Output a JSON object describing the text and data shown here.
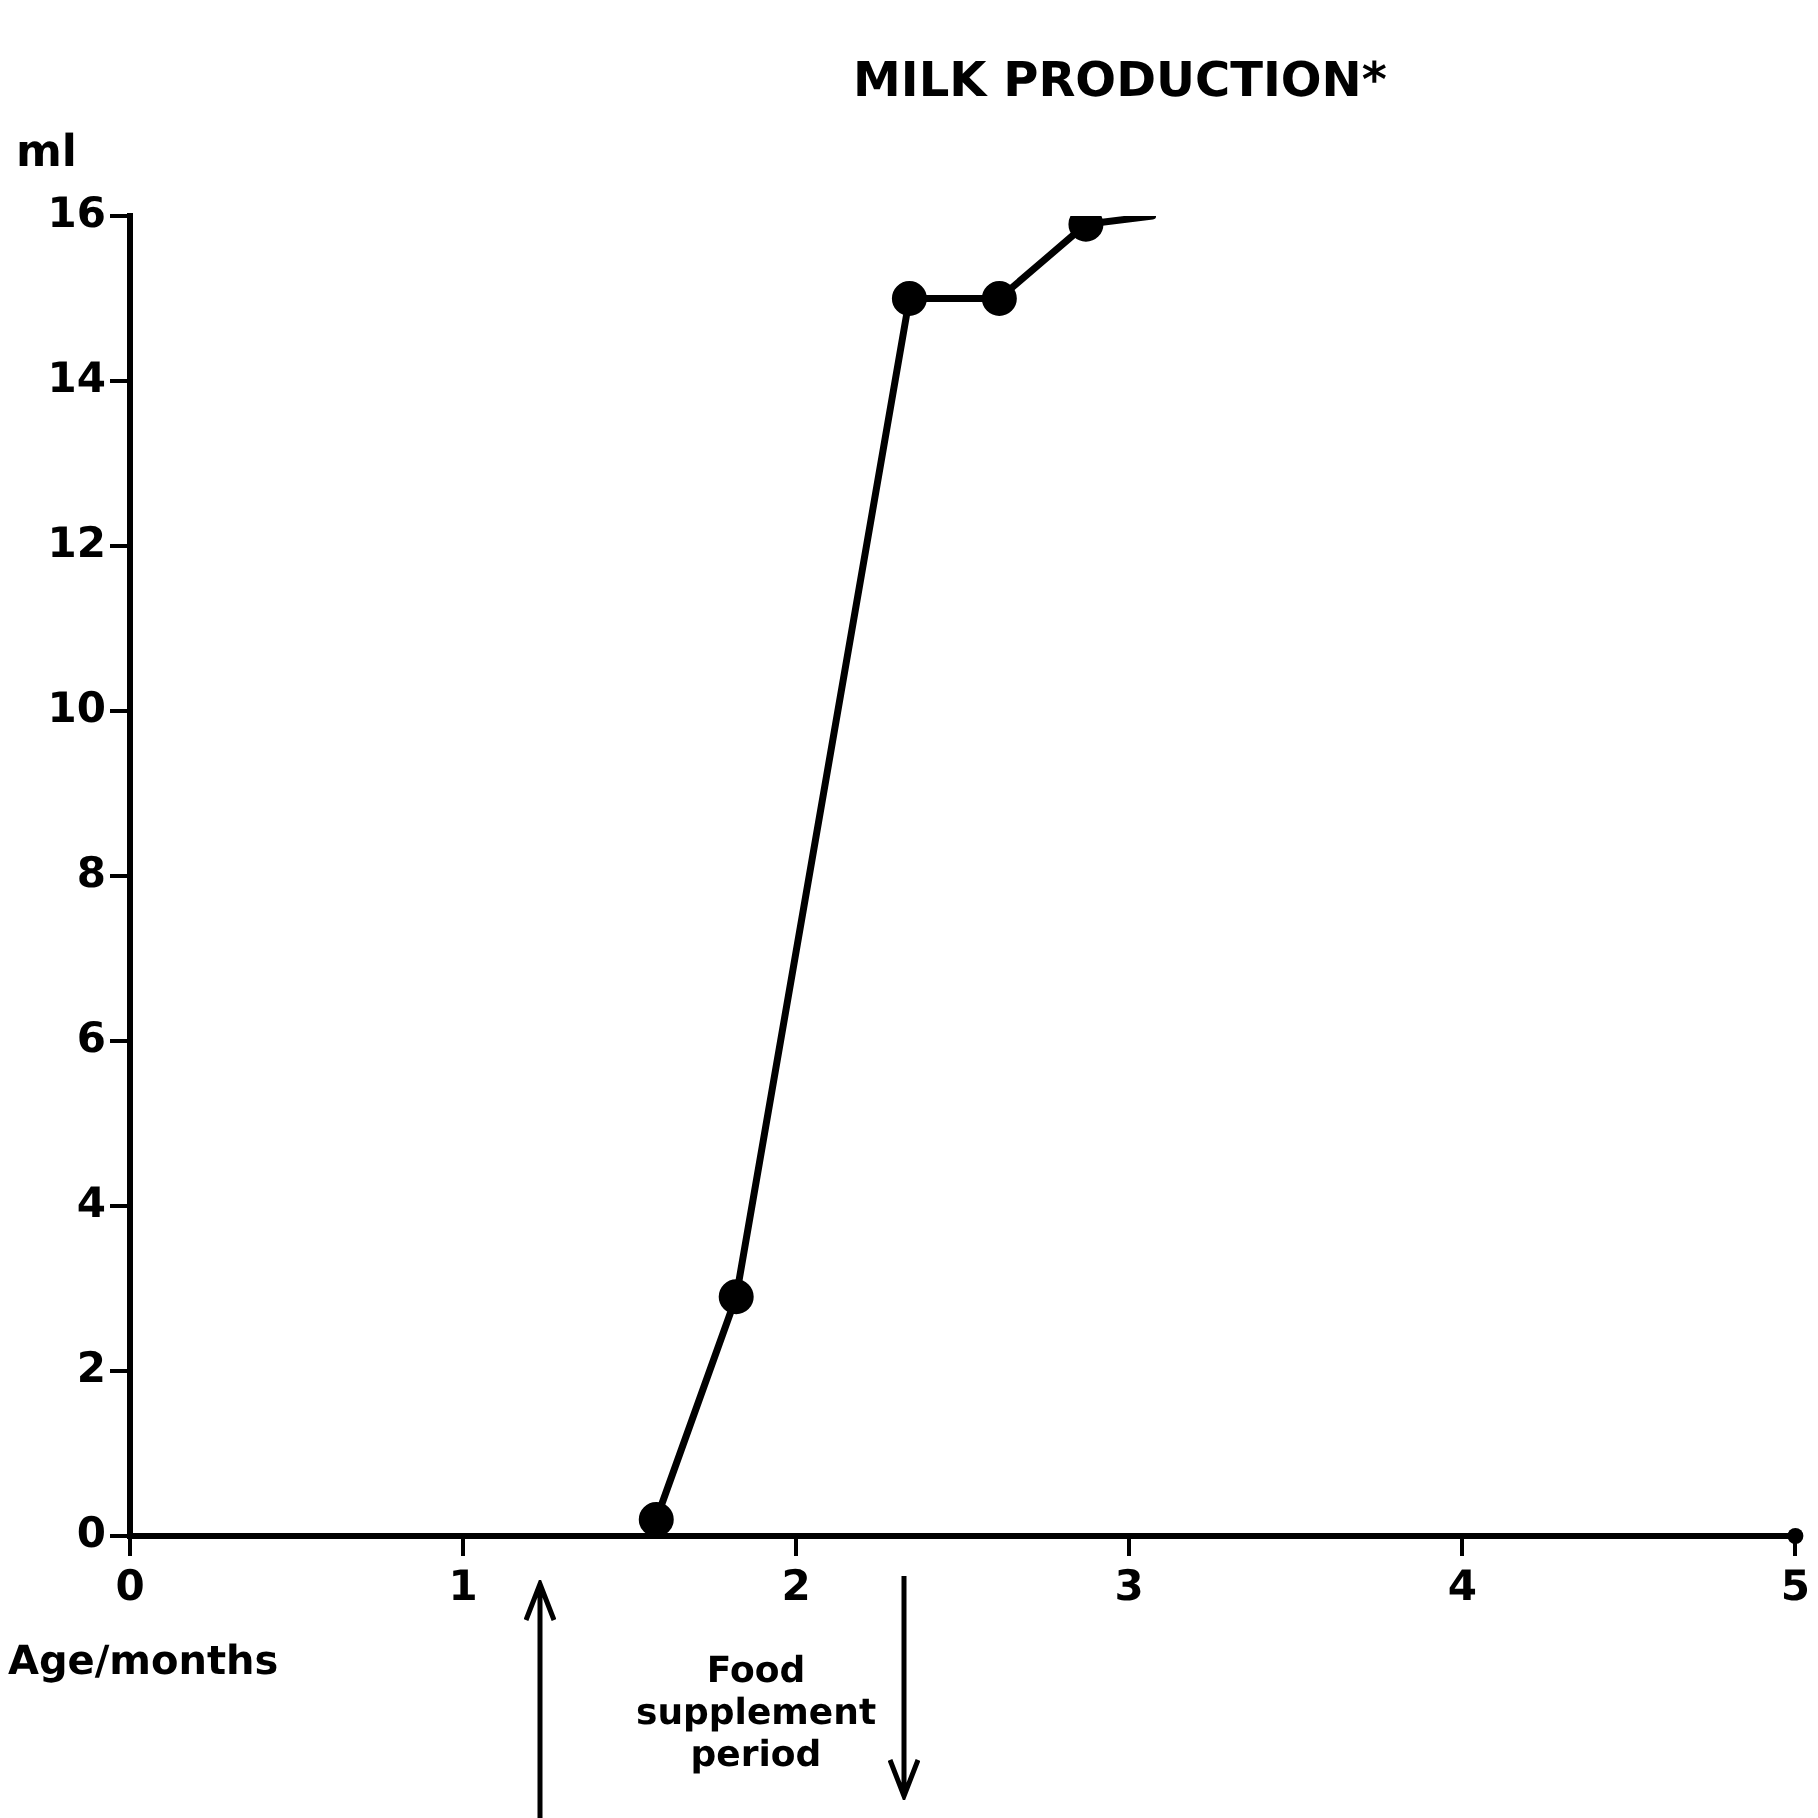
{
  "chart_data": {
    "type": "line",
    "title": "MILK PRODUCTION*",
    "xlabel": "Age/months",
    "ylabel": "ml",
    "series": [
      {
        "color": "#000000",
        "x": [
          1.58,
          1.82,
          2.34,
          2.61,
          2.87
        ],
        "values": [
          0.2,
          2.9,
          15,
          15,
          15.9
        ],
        "marker": "circle"
      },
      {
        "color": "#000000",
        "x": [
          2.87,
          3.07
        ],
        "values": [
          15.9,
          16
        ],
        "marker": "none"
      }
    ],
    "xlim": [
      0,
      5
    ],
    "xticks": [
      0,
      1,
      2,
      3,
      4,
      5
    ],
    "ylim": [
      0,
      16
    ],
    "yticks": [
      0,
      2,
      4,
      6,
      8,
      10,
      12,
      14,
      16
    ],
    "annotations": [
      "Food supplement period"
    ],
    "grid": false,
    "legend": false
  }
}
